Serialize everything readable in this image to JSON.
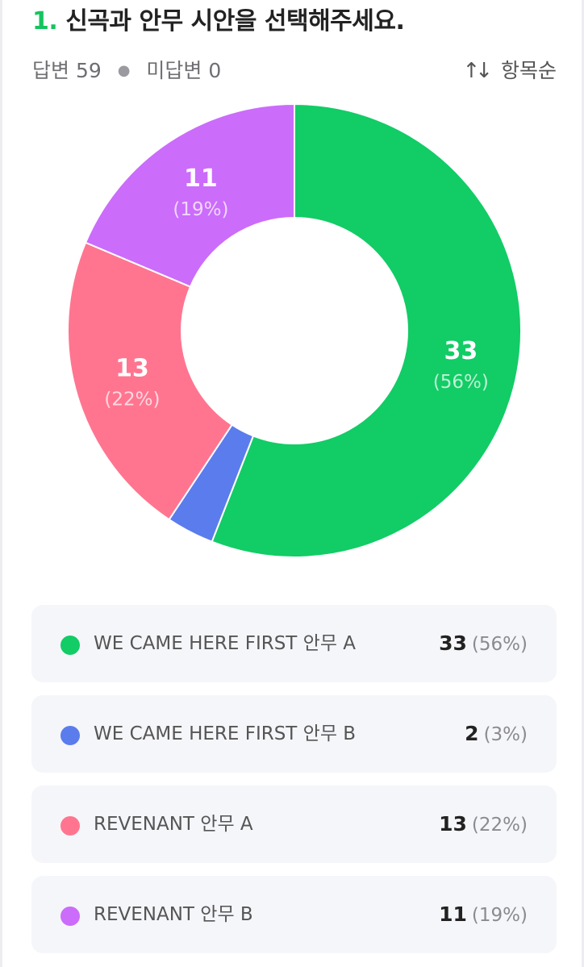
{
  "question": {
    "number": "1.",
    "text": "신곡과 안무 시안을 선택해주세요."
  },
  "stats": {
    "answered_label": "답변",
    "answered": "59",
    "unanswered_label": "미답변",
    "unanswered": "0"
  },
  "sort": {
    "label": "항목순",
    "icon": "sort-arrows-icon"
  },
  "chart_data": {
    "type": "pie",
    "donut": true,
    "start": "top, clockwise",
    "categories": [
      "WE CAME HERE FIRST 안무 A",
      "WE CAME HERE FIRST 안무 B",
      "REVENANT 안무 A",
      "REVENANT 안무 B"
    ],
    "values": [
      33,
      2,
      13,
      11
    ],
    "percentages": [
      "56%",
      "3%",
      "22%",
      "19%"
    ],
    "colors": [
      "#12cc66",
      "#5b7cec",
      "#ff7590",
      "#cb6cfb"
    ],
    "slice_labels": [
      {
        "count": "33",
        "pct": "(56%)"
      },
      {
        "count": "",
        "pct": ""
      },
      {
        "count": "13",
        "pct": "(22%)"
      },
      {
        "count": "11",
        "pct": "(19%)"
      }
    ]
  },
  "legend": [
    {
      "label": "WE CAME HERE FIRST 안무 A",
      "count": "33",
      "pct": "(56%)",
      "color": "#12cc66"
    },
    {
      "label": "WE CAME HERE FIRST 안무 B",
      "count": "2",
      "pct": "(3%)",
      "color": "#5b7cec"
    },
    {
      "label": "REVENANT 안무 A",
      "count": "13",
      "pct": "(22%)",
      "color": "#ff7590"
    },
    {
      "label": "REVENANT 안무 B",
      "count": "11",
      "pct": "(19%)",
      "color": "#cb6cfb"
    }
  ]
}
